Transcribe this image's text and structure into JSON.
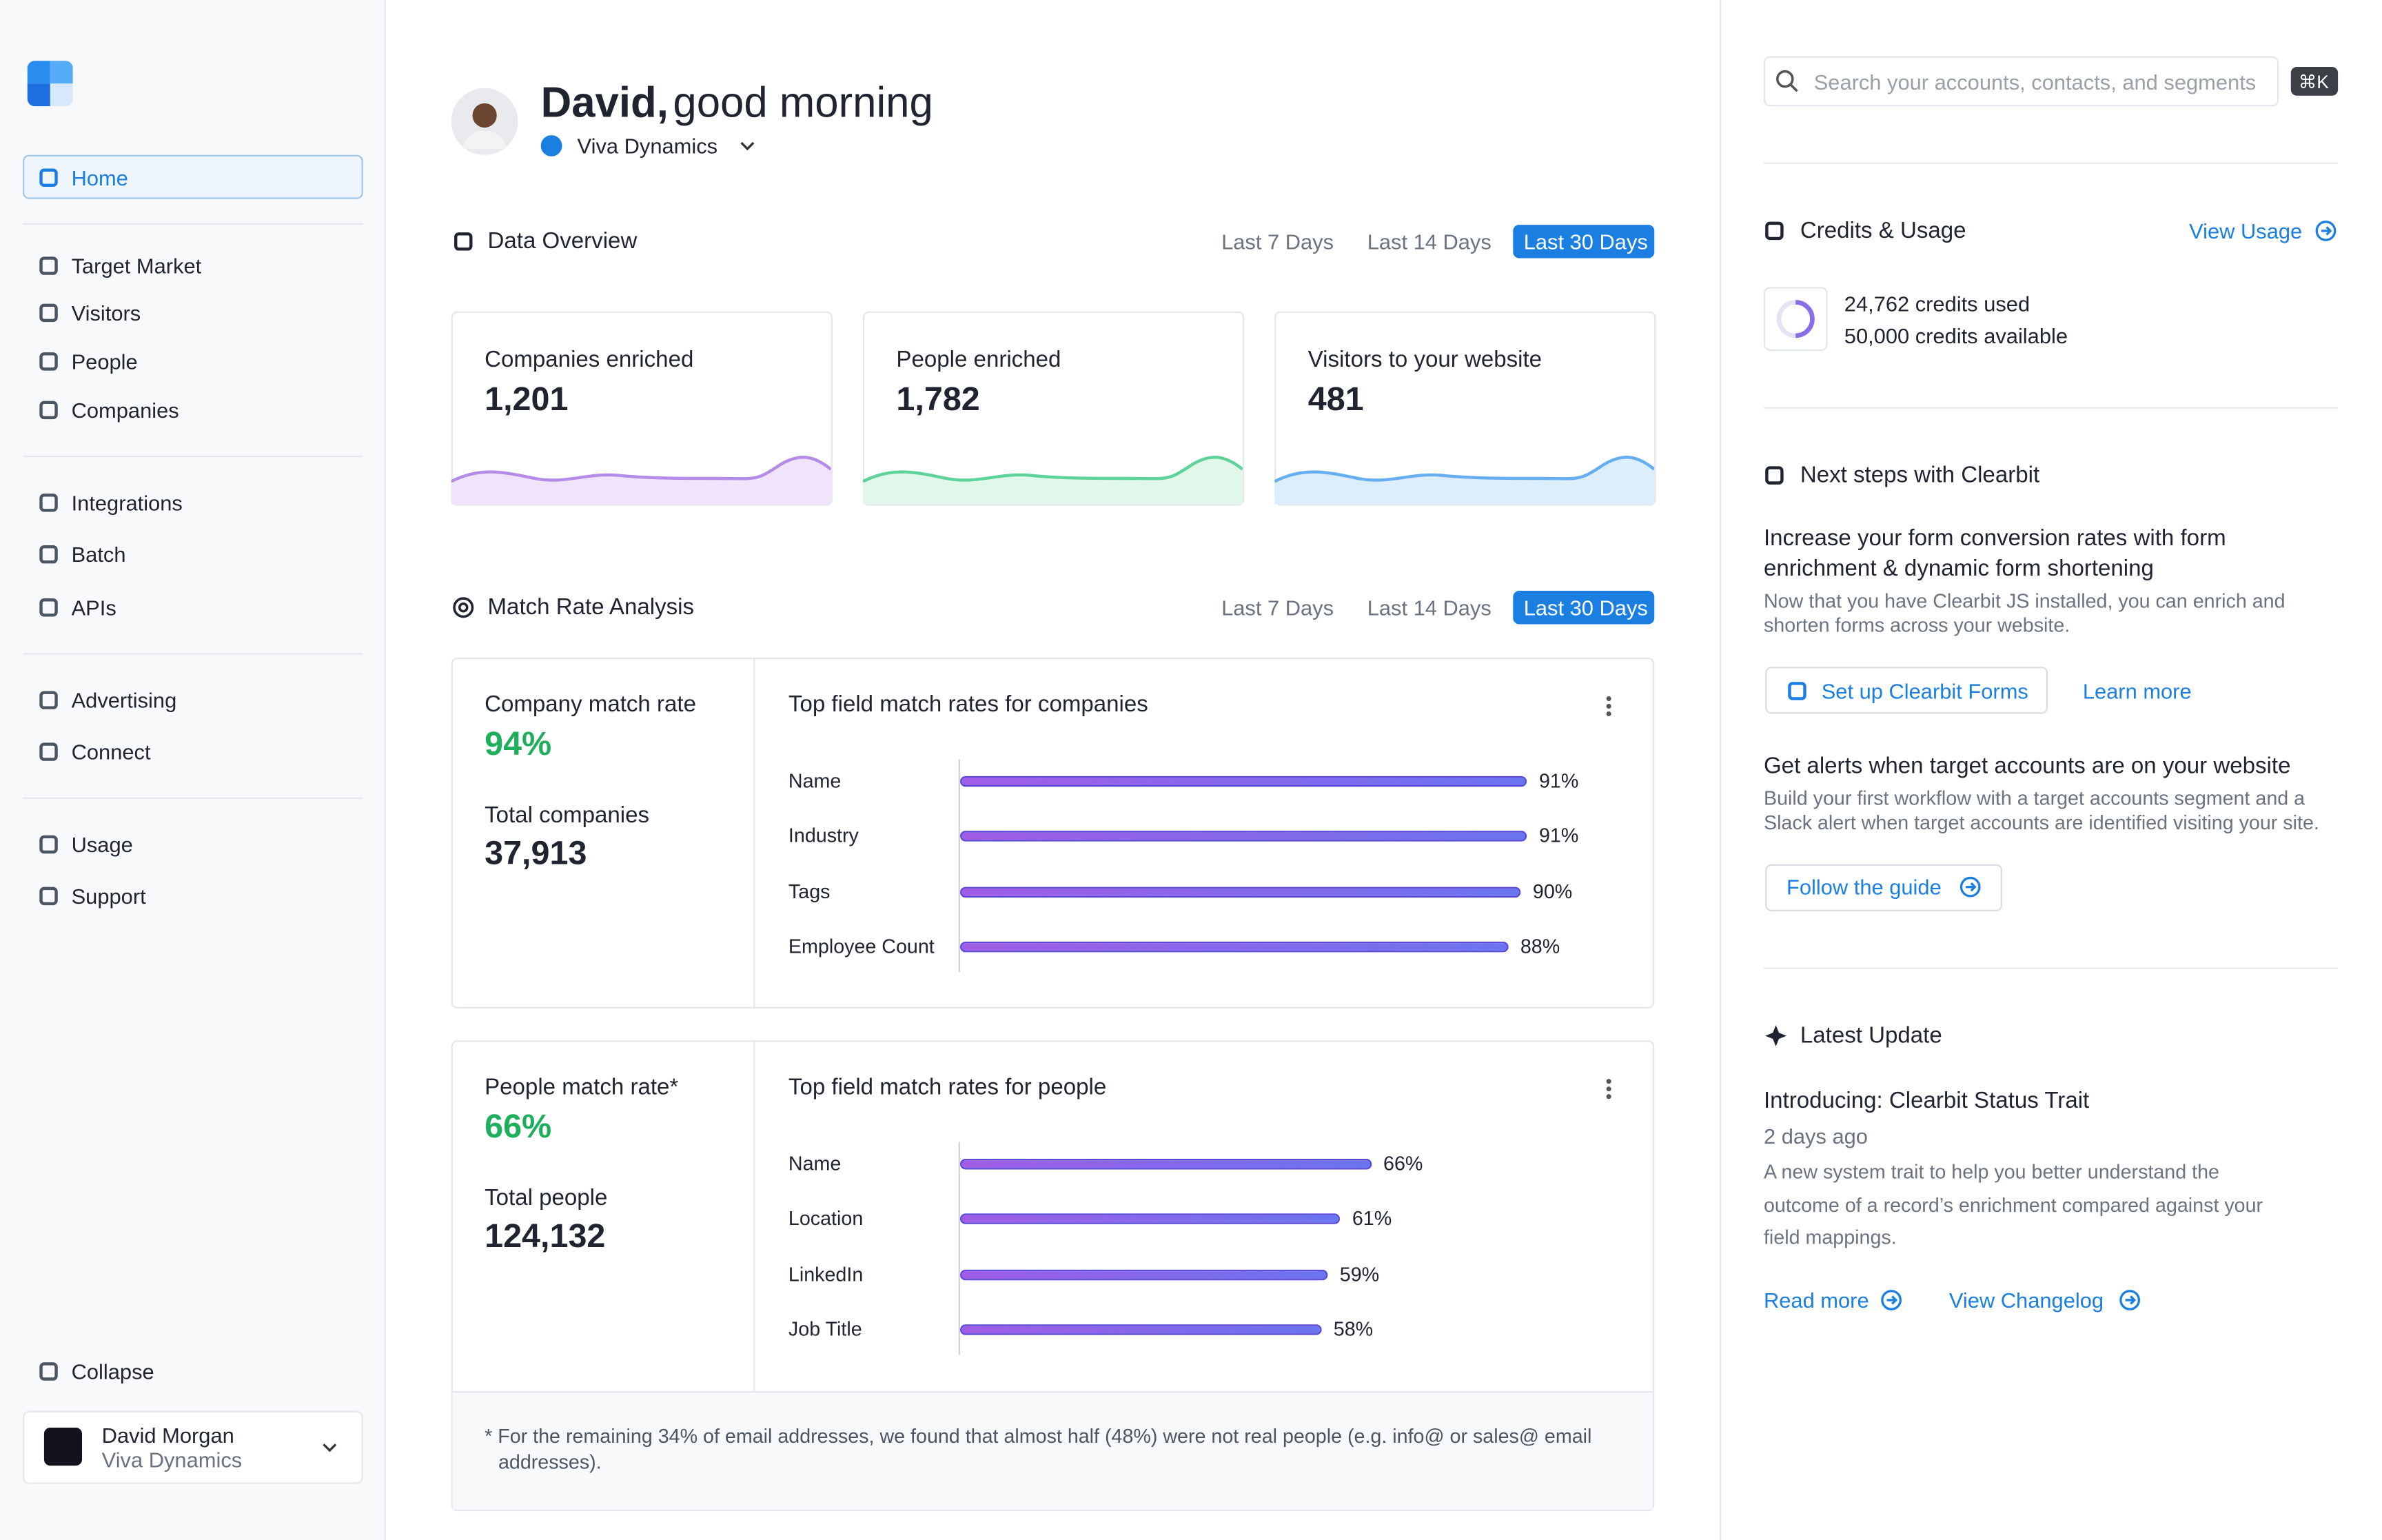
{
  "sidebar": {
    "home": "Home",
    "groups": [
      [
        "Target Market",
        "Visitors",
        "People",
        "Companies"
      ],
      [
        "Integrations",
        "Batch",
        "APIs"
      ],
      [
        "Advertising",
        "Connect"
      ],
      [
        "Usage",
        "Support"
      ]
    ],
    "collapse": "Collapse",
    "user": {
      "name": "David Morgan",
      "org": "Viva Dynamics"
    }
  },
  "header": {
    "name": "David,",
    "greeting": "good morning",
    "org": "Viva Dynamics"
  },
  "data_overview": {
    "title": "Data Overview",
    "ranges": [
      "Last 7 Days",
      "Last 14 Days",
      "Last 30 Days"
    ],
    "cards": [
      {
        "label": "Companies enriched",
        "value": "1,201"
      },
      {
        "label": "People enriched",
        "value": "1,782"
      },
      {
        "label": "Visitors to your website",
        "value": "481"
      }
    ]
  },
  "match_rate": {
    "title": "Match Rate Analysis",
    "ranges": [
      "Last 7 Days",
      "Last 14 Days",
      "Last 30 Days"
    ],
    "panels": [
      {
        "rate_label": "Company match rate",
        "rate": "94%",
        "total_label": "Total companies",
        "total": "37,913",
        "chart": {
          "type": "bar",
          "title": "Top field match rates for companies",
          "categories": [
            "Name",
            "Industry",
            "Tags",
            "Employee Count"
          ],
          "values": [
            91,
            91,
            90,
            88
          ],
          "value_labels": [
            "91%",
            "91%",
            "90%",
            "88%"
          ]
        }
      },
      {
        "rate_label": "People match rate*",
        "rate": "66%",
        "total_label": "Total people",
        "total": "124,132",
        "chart": {
          "type": "bar",
          "title": "Top field match rates for people",
          "categories": [
            "Name",
            "Location",
            "LinkedIn",
            "Job Title"
          ],
          "values": [
            66,
            61,
            59,
            58
          ],
          "value_labels": [
            "66%",
            "61%",
            "59%",
            "58%"
          ]
        }
      }
    ],
    "footnote": "* For the remaining 34% of email addresses, we found that almost half (48%) were not real people (e.g. info@ or sales@ email addresses)."
  },
  "right": {
    "search_placeholder": "Search your accounts, contacts, and segments",
    "shortcut": "⌘K",
    "credits": {
      "title": "Credits & Usage",
      "link": "View Usage",
      "used": "24,762 credits used",
      "available": "50,000 credits available"
    },
    "next_steps": {
      "title": "Next steps with Clearbit",
      "items": [
        {
          "heading": "Increase your form conversion rates with form enrichment & dynamic form shortening",
          "body": "Now that you have Clearbit JS installed, you can enrich and shorten forms across your website.",
          "actions": [
            "Set up Clearbit Forms",
            "Learn more"
          ]
        },
        {
          "heading": "Get alerts when target accounts are on your website",
          "body": "Build your first workflow with a target accounts segment and a Slack alert when target accounts are identified visiting your site.",
          "actions": [
            "Follow the guide"
          ]
        }
      ]
    },
    "latest": {
      "title": "Latest Update",
      "heading": "Introducing: Clearbit Status Trait",
      "date": "2 days ago",
      "body": "A new system trait to help you better understand the outcome of a record’s enrichment compared against your field mappings.",
      "actions": [
        "Read more",
        "View Changelog"
      ]
    }
  }
}
